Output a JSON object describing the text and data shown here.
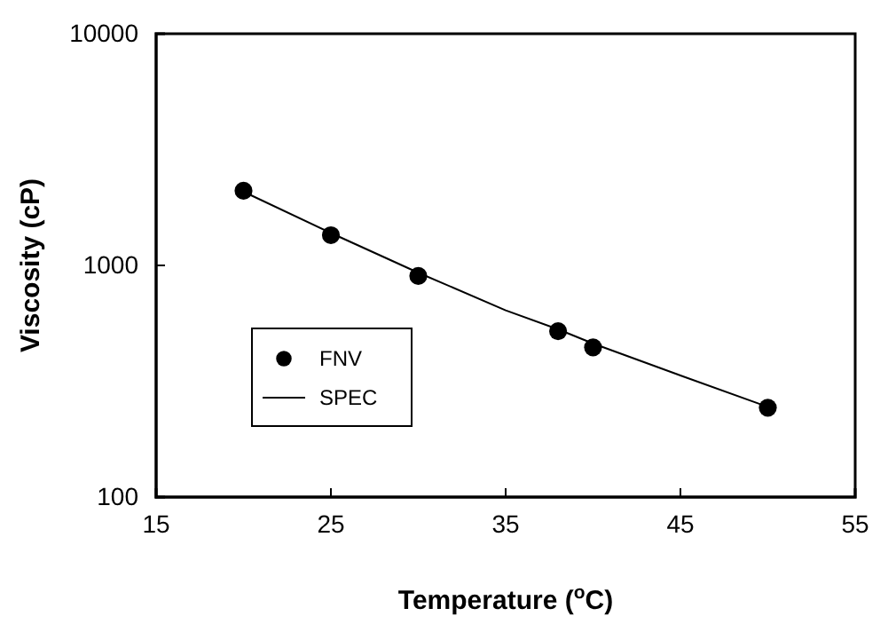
{
  "chart_data": {
    "type": "scatter",
    "xlabel": "Temperature ($^{o}$C)",
    "ylabel": "Viscosity (cP)",
    "log": "y",
    "xlim": [
      15,
      55
    ],
    "xticks": [
      15,
      25,
      35,
      45,
      55
    ],
    "ylim": [
      100,
      10000
    ],
    "yticks": [
      100,
      1000,
      10000
    ],
    "grid": false,
    "legend": "bottom left",
    "series": [
      {
        "name": "FNV",
        "marker": "circle",
        "color": "#000000",
        "x": [
          20,
          25,
          30,
          38,
          40,
          50
        ],
        "values": [
          2100,
          1350,
          900,
          520,
          443,
          243
        ]
      },
      {
        "name": "SPEC",
        "type": "line",
        "marker": "none",
        "line_style": "solid",
        "color": "#000000",
        "x": [
          20,
          25,
          30,
          35,
          38,
          40,
          45,
          50
        ],
        "values": [
          2080,
          1380,
          930,
          640,
          530,
          460,
          335,
          245
        ]
      }
    ]
  }
}
